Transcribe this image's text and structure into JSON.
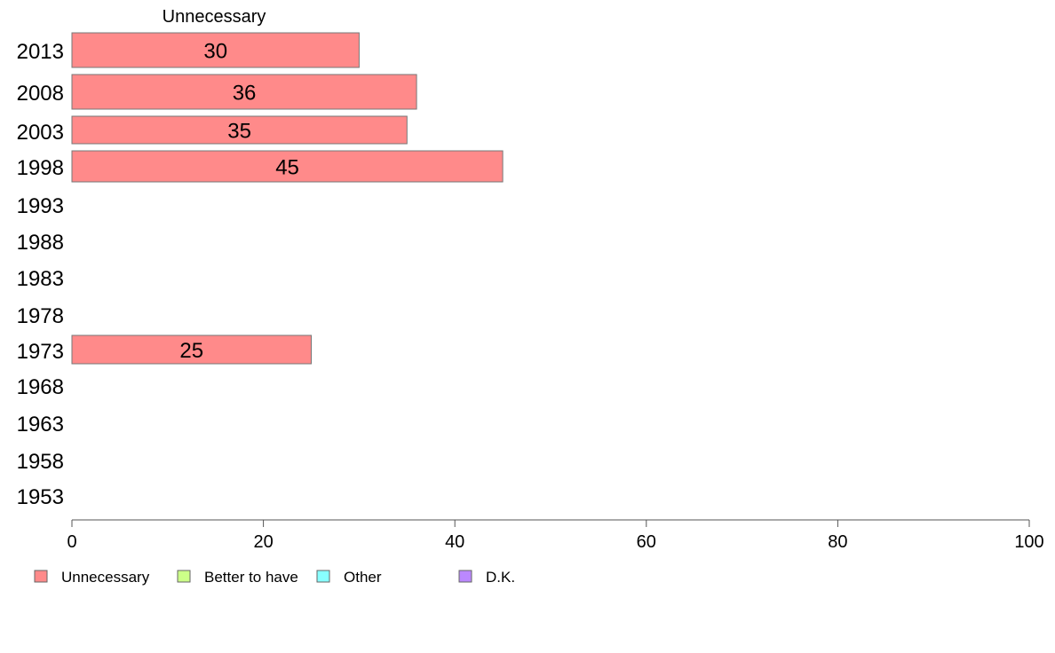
{
  "chart_data": {
    "type": "bar",
    "orientation": "horizontal",
    "series_title": "Unnecessary",
    "categories": [
      "2013",
      "2008",
      "2003",
      "1998",
      "1993",
      "1988",
      "1983",
      "1978",
      "1973",
      "1968",
      "1963",
      "1958",
      "1953"
    ],
    "series": [
      {
        "name": "Unnecessary",
        "color": "#ff8a8a",
        "values": [
          30,
          36,
          35,
          45,
          null,
          null,
          null,
          null,
          25,
          null,
          null,
          null,
          null
        ]
      }
    ],
    "xlim": [
      0,
      100
    ],
    "xticks": [
      0,
      20,
      40,
      60,
      80,
      100
    ],
    "grid": false,
    "legend_position": "bottom",
    "legend": [
      {
        "label": "Unnecessary",
        "color": "#ff8a8a"
      },
      {
        "label": "Better to have",
        "color": "#ccff88"
      },
      {
        "label": "Other",
        "color": "#88ffff"
      },
      {
        "label": "D.K.",
        "color": "#bb88ff"
      }
    ]
  }
}
